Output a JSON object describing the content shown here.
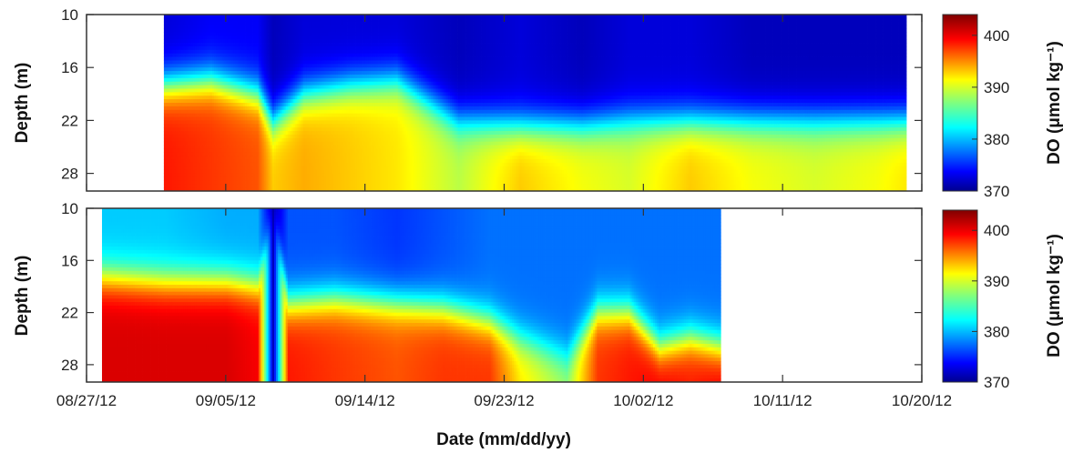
{
  "chart_data": [
    {
      "type": "heatmap",
      "title": "",
      "xlabel": "Date (mm/dd/yy)",
      "ylabel": "Depth (m)",
      "x_tick_labels": [
        "08/27/12",
        "09/05/12",
        "09/14/12",
        "09/23/12",
        "10/02/12",
        "10/11/12",
        "10/20/12"
      ],
      "x_range": [
        "08/27/12",
        "10/20/12"
      ],
      "y_tick_labels": [
        "10",
        "16",
        "22",
        "28"
      ],
      "y_range": [
        10,
        30
      ],
      "y_reversed": true,
      "data_range": [
        "09/01/12",
        "10/19/12"
      ],
      "colorbar": {
        "label": "DO (μmol kg⁻¹)",
        "ticks": [
          "370",
          "380",
          "390",
          "400"
        ],
        "range": [
          370,
          404
        ],
        "colormap": "jet"
      },
      "series": [
        {
          "name": "",
          "x": [
            "09/01/12",
            "09/04/12",
            "09/07/12",
            "09/08/12",
            "09/10/12",
            "09/13/12",
            "09/16/12",
            "09/20/12",
            "09/24/12",
            "09/28/12",
            "10/01/12",
            "10/05/12",
            "10/09/12",
            "10/13/12",
            "10/17/12",
            "10/19/12"
          ],
          "oxycline_depth_m": [
            18,
            17.5,
            19,
            22,
            19,
            18,
            17.5,
            22,
            22.5,
            22.5,
            22,
            22,
            22,
            22,
            22,
            22
          ],
          "surface_DO": [
            373,
            374,
            374,
            372,
            373,
            373,
            373,
            372,
            373,
            372,
            373,
            373,
            372,
            372,
            372,
            372
          ],
          "deep_DO": [
            399,
            398,
            397,
            393,
            394,
            393,
            392,
            389,
            393,
            391,
            390,
            393,
            391,
            390,
            391,
            392
          ]
        }
      ]
    },
    {
      "type": "heatmap",
      "title": "",
      "xlabel": "Date (mm/dd/yy)",
      "ylabel": "Depth (m)",
      "x_tick_labels": [
        "08/27/12",
        "09/05/12",
        "09/14/12",
        "09/23/12",
        "10/02/12",
        "10/11/12",
        "10/20/12"
      ],
      "x_range": [
        "08/27/12",
        "10/20/12"
      ],
      "y_tick_labels": [
        "10",
        "16",
        "22",
        "28"
      ],
      "y_range": [
        10,
        30
      ],
      "y_reversed": true,
      "data_range": [
        "08/28/12",
        "10/07/12"
      ],
      "colorbar": {
        "label": "DO (μmol kg⁻¹)",
        "ticks": [
          "370",
          "380",
          "390",
          "400"
        ],
        "range": [
          370,
          404
        ],
        "colormap": "jet"
      },
      "series": [
        {
          "name": "",
          "x": [
            "08/28/12",
            "09/01/12",
            "09/05/12",
            "09/07/12",
            "09/08/12",
            "09/09/12",
            "09/12/12",
            "09/16/12",
            "09/19/12",
            "09/22/12",
            "09/24/12",
            "09/27/12",
            "09/29/12",
            "10/01/12",
            "10/03/12",
            "10/05/12",
            "10/07/12"
          ],
          "oxycline_depth_m": [
            18,
            18.5,
            18.5,
            19,
            10,
            21,
            20.5,
            21,
            21.5,
            23,
            25,
            27,
            22,
            22,
            26,
            25,
            26
          ],
          "surface_DO": [
            381,
            381,
            380,
            380,
            371,
            377,
            377,
            376,
            377,
            378,
            378,
            378,
            378,
            378,
            378,
            378,
            378
          ],
          "deep_DO": [
            401,
            401,
            401,
            400,
            372,
            399,
            398,
            397,
            398,
            398,
            392,
            388,
            398,
            399,
            400,
            399,
            400
          ]
        }
      ]
    }
  ]
}
